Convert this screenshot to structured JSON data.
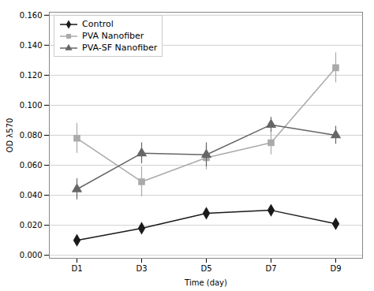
{
  "chart_data": {
    "type": "line",
    "xlabel": "Time (day)",
    "ylabel": "OD λ570",
    "categories": [
      "D1",
      "D3",
      "D5",
      "D7",
      "D9"
    ],
    "series": [
      {
        "name": "Control",
        "color": "#1a1a1a",
        "marker": "diamond",
        "values": [
          0.01,
          0.018,
          0.028,
          0.03,
          0.021
        ],
        "errors": [
          0.002,
          0.003,
          0.003,
          0.003,
          0.003
        ]
      },
      {
        "name": "PVA Nanofiber",
        "color": "#aaaaaa",
        "marker": "square",
        "values": [
          0.078,
          0.049,
          0.065,
          0.075,
          0.125
        ],
        "errors": [
          0.01,
          0.01,
          0.008,
          0.008,
          0.01
        ]
      },
      {
        "name": "PVA-SF Nanofiber",
        "color": "#666666",
        "marker": "triangle",
        "values": [
          0.044,
          0.068,
          0.067,
          0.087,
          0.08
        ],
        "errors": [
          0.007,
          0.007,
          0.008,
          0.005,
          0.006
        ]
      }
    ],
    "ylim": [
      -0.002,
      0.162
    ],
    "yticks": [
      {
        "value": 0.0,
        "label": "0.000"
      },
      {
        "value": 0.02,
        "label": "0.020"
      },
      {
        "value": 0.04,
        "label": "0.040"
      },
      {
        "value": 0.06,
        "label": "0.060"
      },
      {
        "value": 0.08,
        "label": "0.080"
      },
      {
        "value": 0.1,
        "label": "0.100"
      },
      {
        "value": 0.12,
        "label": "0.120"
      },
      {
        "value": 0.14,
        "label": "0.140"
      },
      {
        "value": 0.16,
        "label": "0.160"
      }
    ],
    "grid": true,
    "legend": "upper left"
  }
}
